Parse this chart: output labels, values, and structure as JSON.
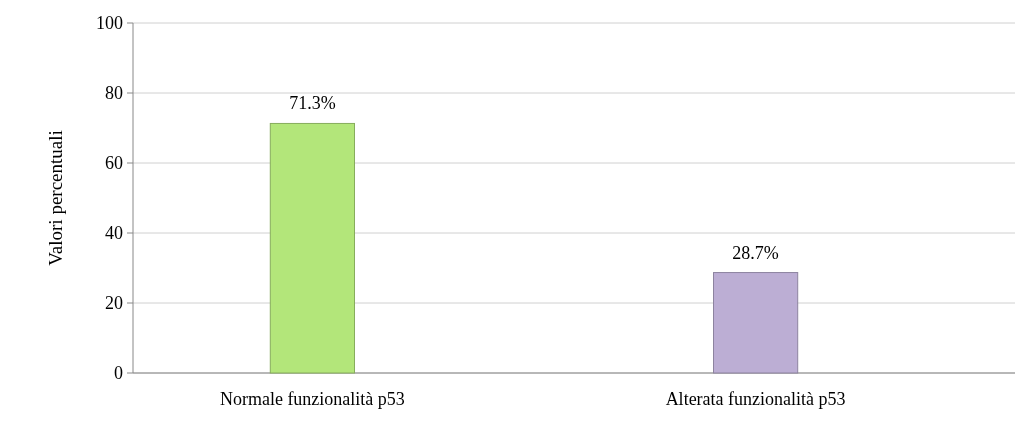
{
  "chart_data": {
    "type": "bar",
    "ylabel": "Valori percentuali",
    "categories": [
      "Normale funzionalità p53",
      "Alterata funzionalità p53"
    ],
    "values": [
      71.3,
      28.7
    ],
    "colors": [
      "#b3e67a",
      "#bcaed4"
    ],
    "value_labels": [
      "71.3%",
      "28.7%"
    ],
    "ylim": [
      0,
      100
    ],
    "yticks": [
      0,
      20,
      40,
      60,
      80,
      100
    ],
    "grid": "y"
  }
}
